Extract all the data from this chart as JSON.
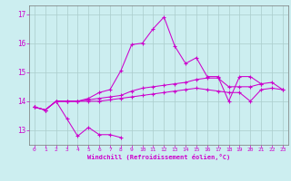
{
  "background_color": "#cceef0",
  "grid_color": "#aacccc",
  "line_color": "#cc00cc",
  "xlim": [
    -0.5,
    23.5
  ],
  "ylim": [
    12.5,
    17.3
  ],
  "yticks": [
    13,
    14,
    15,
    16,
    17
  ],
  "xticks": [
    0,
    1,
    2,
    3,
    4,
    5,
    6,
    7,
    8,
    9,
    10,
    11,
    12,
    13,
    14,
    15,
    16,
    17,
    18,
    19,
    20,
    21,
    22,
    23
  ],
  "xlabel": "Windchill (Refroidissement éolien,°C)",
  "series1_x": [
    0,
    1,
    2,
    3,
    4,
    5,
    6,
    7,
    8
  ],
  "series1_y": [
    13.8,
    13.7,
    14.0,
    13.4,
    12.8,
    13.1,
    12.85,
    12.85,
    12.75
  ],
  "series2_x": [
    0,
    1,
    2,
    3,
    4,
    5,
    6,
    7,
    8,
    9,
    10,
    11,
    12,
    13,
    14,
    15,
    16,
    17,
    18,
    19,
    20,
    21
  ],
  "series2_y": [
    13.8,
    13.7,
    14.0,
    14.0,
    14.0,
    14.1,
    14.3,
    14.4,
    15.05,
    15.95,
    16.0,
    16.5,
    16.9,
    15.9,
    15.3,
    15.5,
    14.85,
    14.85,
    14.0,
    14.85,
    14.85,
    14.6
  ],
  "series3_x": [
    0,
    1,
    2,
    3,
    4,
    5,
    6,
    7,
    8,
    9,
    10,
    11,
    12,
    13,
    14,
    15,
    16,
    17,
    18,
    19,
    20,
    21,
    22,
    23
  ],
  "series3_y": [
    13.8,
    13.7,
    14.0,
    14.0,
    14.0,
    14.05,
    14.1,
    14.15,
    14.2,
    14.35,
    14.45,
    14.5,
    14.55,
    14.6,
    14.65,
    14.75,
    14.8,
    14.8,
    14.5,
    14.5,
    14.5,
    14.6,
    14.65,
    14.4
  ],
  "series4_x": [
    0,
    1,
    2,
    3,
    4,
    5,
    6,
    7,
    8,
    9,
    10,
    11,
    12,
    13,
    14,
    15,
    16,
    17,
    18,
    19,
    20,
    21,
    22,
    23
  ],
  "series4_y": [
    13.8,
    13.7,
    14.0,
    14.0,
    14.0,
    14.0,
    14.0,
    14.05,
    14.1,
    14.15,
    14.2,
    14.25,
    14.3,
    14.35,
    14.4,
    14.45,
    14.4,
    14.35,
    14.3,
    14.3,
    14.0,
    14.4,
    14.45,
    14.4
  ]
}
